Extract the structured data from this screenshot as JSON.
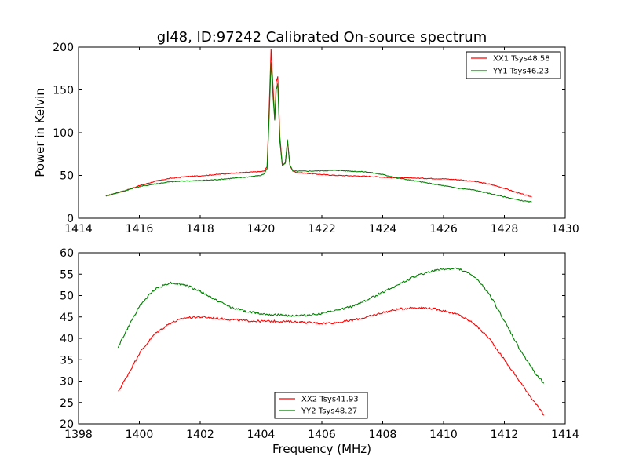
{
  "figure": {
    "title": "gl48, ID:97242 Calibrated On-source spectrum",
    "ylabel": "Power in Kelvin",
    "xlabel": "Frequency (MHz)"
  },
  "chart_data": [
    {
      "type": "line",
      "title": "gl48, ID:97242 Calibrated On-source spectrum",
      "ylabel": "Power in Kelvin",
      "xlabel": "",
      "xlim": [
        1414,
        1430
      ],
      "ylim": [
        0,
        200
      ],
      "xticks": [
        1414,
        1416,
        1418,
        1420,
        1422,
        1424,
        1426,
        1428,
        1430
      ],
      "yticks": [
        0,
        50,
        100,
        150,
        200
      ],
      "grid": false,
      "legend": "top-right",
      "colors": [
        "#ff0000",
        "#008000"
      ],
      "series": [
        {
          "name": "XX1 Tsys48.58",
          "color": "#ff0000",
          "x": [
            1414.9,
            1415.5,
            1416.0,
            1416.5,
            1417.0,
            1417.5,
            1418.0,
            1418.5,
            1419.0,
            1419.5,
            1420.0,
            1420.1,
            1420.2,
            1420.27,
            1420.33,
            1420.4,
            1420.45,
            1420.5,
            1420.55,
            1420.62,
            1420.7,
            1420.8,
            1420.87,
            1420.95,
            1421.05,
            1421.2,
            1421.5,
            1422.0,
            1422.5,
            1423.0,
            1423.5,
            1424.0,
            1424.5,
            1425.0,
            1425.5,
            1426.0,
            1426.5,
            1427.0,
            1427.5,
            1428.0,
            1428.5,
            1428.9
          ],
          "values": [
            26,
            32,
            38,
            43,
            46.5,
            48.5,
            49.5,
            51,
            52.5,
            53.5,
            54.5,
            55,
            60,
            130,
            197,
            150,
            115,
            160,
            165,
            95,
            62,
            65,
            90,
            62,
            55,
            53.5,
            52.5,
            51,
            50,
            49.5,
            49,
            48,
            47,
            47,
            46.5,
            46,
            45,
            43,
            40,
            35,
            29,
            25
          ]
        },
        {
          "name": "YY1 Tsys46.23",
          "color": "#008000",
          "x": [
            1414.9,
            1415.5,
            1416.0,
            1416.5,
            1417.0,
            1417.5,
            1418.0,
            1418.5,
            1419.0,
            1419.5,
            1420.0,
            1420.1,
            1420.2,
            1420.27,
            1420.33,
            1420.4,
            1420.45,
            1420.5,
            1420.55,
            1420.62,
            1420.7,
            1420.8,
            1420.87,
            1420.95,
            1421.05,
            1421.5,
            1422.0,
            1422.5,
            1423.0,
            1423.5,
            1424.0,
            1424.5,
            1425.0,
            1425.5,
            1426.0,
            1426.5,
            1427.0,
            1427.5,
            1428.0,
            1428.5,
            1428.9
          ],
          "values": [
            26,
            32,
            37,
            40,
            42.5,
            43.5,
            44,
            45,
            46.5,
            48,
            50,
            52,
            58,
            120,
            182,
            140,
            115,
            150,
            157,
            90,
            62,
            64,
            92,
            62,
            55,
            55,
            55.5,
            56,
            55,
            54,
            51,
            47,
            44,
            41,
            38,
            35,
            33,
            29,
            25,
            21,
            19
          ]
        }
      ]
    },
    {
      "type": "line",
      "title": "",
      "ylabel": "",
      "xlabel": "Frequency (MHz)",
      "xlim": [
        1398,
        1414
      ],
      "ylim": [
        20,
        60
      ],
      "xticks": [
        1398,
        1400,
        1402,
        1404,
        1406,
        1408,
        1410,
        1412,
        1414
      ],
      "yticks": [
        20,
        25,
        30,
        35,
        40,
        45,
        50,
        55,
        60
      ],
      "grid": false,
      "legend": "bottom-center",
      "colors": [
        "#ff0000",
        "#008000"
      ],
      "series": [
        {
          "name": "XX2 Tsys41.93",
          "color": "#ff0000",
          "x": [
            1399.3,
            1399.7,
            1400.0,
            1400.5,
            1401.0,
            1401.5,
            1402.0,
            1402.5,
            1403.0,
            1403.5,
            1404.0,
            1404.5,
            1405.0,
            1405.5,
            1406.0,
            1406.5,
            1407.0,
            1407.5,
            1408.0,
            1408.5,
            1409.0,
            1409.5,
            1410.0,
            1410.5,
            1411.0,
            1411.5,
            1412.0,
            1412.5,
            1413.0,
            1413.3
          ],
          "values": [
            27.5,
            32.5,
            36.5,
            41,
            43.5,
            44.8,
            45,
            44.7,
            44.4,
            44.1,
            44,
            44,
            43.9,
            43.7,
            43.5,
            43.7,
            44.2,
            45,
            46,
            46.8,
            47.2,
            47.1,
            46.5,
            45.5,
            43.5,
            40,
            35,
            30,
            25,
            22
          ]
        },
        {
          "name": "YY2 Tsys48.27",
          "color": "#008000",
          "x": [
            1399.3,
            1399.7,
            1400.0,
            1400.5,
            1401.0,
            1401.5,
            1402.0,
            1402.5,
            1403.0,
            1403.5,
            1404.0,
            1404.5,
            1405.0,
            1405.5,
            1406.0,
            1406.5,
            1407.0,
            1407.5,
            1408.0,
            1408.5,
            1409.0,
            1409.5,
            1410.0,
            1410.5,
            1411.0,
            1411.5,
            1412.0,
            1412.5,
            1413.0,
            1413.3
          ],
          "values": [
            38,
            43.5,
            47.5,
            51.5,
            53,
            52.5,
            51,
            49,
            47.3,
            46.3,
            45.8,
            45.5,
            45.3,
            45.4,
            45.8,
            46.5,
            47.5,
            49,
            50.8,
            52.5,
            54.3,
            55.5,
            56.2,
            56.3,
            54.5,
            50.5,
            44,
            37.5,
            32,
            29.5
          ]
        }
      ]
    }
  ]
}
